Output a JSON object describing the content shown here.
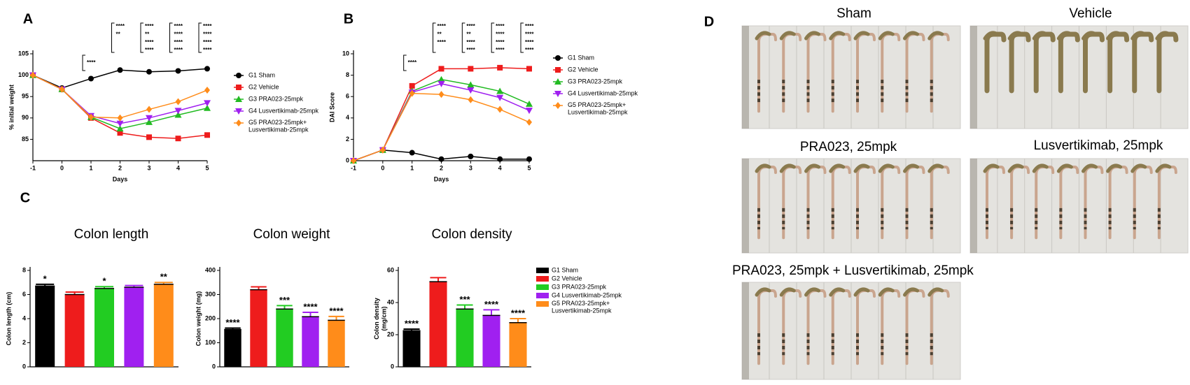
{
  "chart_data": [
    {
      "type": "line",
      "panel": "A",
      "xlabel": "Days",
      "ylabel": "% initial weight",
      "x": [
        -1,
        0,
        1,
        2,
        3,
        4,
        5
      ],
      "xlim": [
        -1,
        5
      ],
      "xticks": [
        -1,
        0,
        1,
        2,
        3,
        4,
        5
      ],
      "ylim": [
        80,
        105
      ],
      "yticks": [
        85,
        90,
        95,
        100,
        105
      ],
      "series": [
        {
          "name": "G1 Sham",
          "color": "#000000",
          "marker": "circle",
          "values": [
            100,
            97,
            99.2,
            101.2,
            100.8,
            101,
            101.5
          ]
        },
        {
          "name": "G2 Vehicle",
          "color": "#ee1c1c",
          "marker": "square",
          "values": [
            100,
            96.7,
            90,
            86.5,
            85.5,
            85.2,
            86
          ]
        },
        {
          "name": "G3 PRA023-25mpk",
          "color": "#22bb22",
          "marker": "triangle-up",
          "values": [
            100,
            96.7,
            90.2,
            87.5,
            89,
            90.7,
            92.3
          ]
        },
        {
          "name": "G4 Lusvertikimab-25mpk",
          "color": "#a020f0",
          "marker": "triangle-down",
          "values": [
            100,
            96.7,
            90.5,
            88.7,
            90,
            91.7,
            93.5
          ]
        },
        {
          "name": "G5 PRA023-25mpk+\nLusvertikimab-25mpk",
          "color": "#ff8c1a",
          "marker": "diamond",
          "values": [
            100,
            96.7,
            90.2,
            90,
            92,
            93.8,
            96.5
          ]
        }
      ],
      "annotations": [
        {
          "x": 1,
          "labels": [
            {
              "text": "****",
              "color": "#000000"
            }
          ]
        },
        {
          "x": 2,
          "labels": [
            {
              "text": "****",
              "color": "#000000"
            },
            {
              "text": "**",
              "color": "#ff8c1a"
            }
          ]
        },
        {
          "x": 3,
          "labels": [
            {
              "text": "****",
              "color": "#000000"
            },
            {
              "text": "**",
              "color": "#22bb22"
            },
            {
              "text": "****",
              "color": "#a020f0"
            },
            {
              "text": "****",
              "color": "#ff8c1a"
            }
          ]
        },
        {
          "x": 4,
          "labels": [
            {
              "text": "****",
              "color": "#000000"
            },
            {
              "text": "****",
              "color": "#22bb22"
            },
            {
              "text": "****",
              "color": "#a020f0"
            },
            {
              "text": "****",
              "color": "#ff8c1a"
            }
          ]
        },
        {
          "x": 5,
          "labels": [
            {
              "text": "****",
              "color": "#000000"
            },
            {
              "text": "****",
              "color": "#22bb22"
            },
            {
              "text": "****",
              "color": "#a020f0"
            },
            {
              "text": "****",
              "color": "#ff8c1a"
            }
          ]
        }
      ]
    },
    {
      "type": "line",
      "panel": "B",
      "xlabel": "Days",
      "ylabel": "DAI Score",
      "x": [
        -1,
        0,
        1,
        2,
        3,
        4,
        5
      ],
      "xlim": [
        -1,
        5
      ],
      "xticks": [
        -1,
        0,
        1,
        2,
        3,
        4,
        5
      ],
      "ylim": [
        0,
        10
      ],
      "yticks": [
        0,
        2,
        4,
        6,
        8,
        10
      ],
      "series": [
        {
          "name": "G1 Sham",
          "color": "#000000",
          "marker": "circle",
          "values": [
            0,
            1,
            0.75,
            0.15,
            0.4,
            0.15,
            0.15
          ]
        },
        {
          "name": "G2 Vehicle",
          "color": "#ee1c1c",
          "marker": "square",
          "values": [
            0,
            1,
            7,
            8.6,
            8.6,
            8.7,
            8.6
          ]
        },
        {
          "name": "G3 PRA023-25mpk",
          "color": "#22bb22",
          "marker": "triangle-up",
          "values": [
            0,
            1,
            6.5,
            7.6,
            7.1,
            6.5,
            5.3
          ]
        },
        {
          "name": "G4 Lusvertikimab-25mpk",
          "color": "#a020f0",
          "marker": "triangle-down",
          "values": [
            0,
            1,
            6.4,
            7.2,
            6.6,
            5.9,
            4.7
          ]
        },
        {
          "name": "G5 PRA023-25mpk+\nLusvertikimab-25mpk",
          "color": "#ff8c1a",
          "marker": "diamond",
          "values": [
            0,
            1,
            6.3,
            6.2,
            5.7,
            4.8,
            3.6
          ]
        }
      ],
      "annotations": [
        {
          "x": 1,
          "labels": [
            {
              "text": "****",
              "color": "#000000"
            }
          ]
        },
        {
          "x": 2,
          "labels": [
            {
              "text": "****",
              "color": "#000000"
            },
            {
              "text": "**",
              "color": "#a020f0"
            },
            {
              "text": "****",
              "color": "#ff8c1a"
            }
          ]
        },
        {
          "x": 3,
          "labels": [
            {
              "text": "****",
              "color": "#000000"
            },
            {
              "text": "**",
              "color": "#22bb22"
            },
            {
              "text": "****",
              "color": "#a020f0"
            },
            {
              "text": "****",
              "color": "#ff8c1a"
            }
          ]
        },
        {
          "x": 4,
          "labels": [
            {
              "text": "****",
              "color": "#000000"
            },
            {
              "text": "****",
              "color": "#22bb22"
            },
            {
              "text": "****",
              "color": "#a020f0"
            },
            {
              "text": "****",
              "color": "#ff8c1a"
            }
          ]
        },
        {
          "x": 5,
          "labels": [
            {
              "text": "****",
              "color": "#000000"
            },
            {
              "text": "****",
              "color": "#22bb22"
            },
            {
              "text": "****",
              "color": "#a020f0"
            },
            {
              "text": "****",
              "color": "#ff8c1a"
            }
          ]
        }
      ]
    },
    {
      "type": "bar",
      "panel": "C",
      "title": "Colon length",
      "ylabel": "Colon length (cm)",
      "ylim": [
        0,
        8
      ],
      "yticks": [
        0,
        2,
        4,
        6,
        8
      ],
      "values": [
        6.7,
        6.0,
        6.5,
        6.6,
        6.85
      ],
      "errors": [
        0.15,
        0.2,
        0.15,
        0.15,
        0.15
      ],
      "value_labels": [
        "*",
        null,
        "*",
        null,
        "**"
      ],
      "colors": [
        "#000000",
        "#ee1c1c",
        "#22cc22",
        "#a020f0",
        "#ff8c1a"
      ]
    },
    {
      "type": "bar",
      "title": "Colon weight",
      "ylabel": "Colon weight (mg)",
      "ylim": [
        0,
        400
      ],
      "yticks": [
        0,
        100,
        200,
        300,
        400
      ],
      "values": [
        155,
        320,
        240,
        208,
        193
      ],
      "errors": [
        6,
        12,
        14,
        18,
        16
      ],
      "value_labels": [
        "****",
        null,
        "***",
        "****",
        "****"
      ],
      "colors": [
        "#000000",
        "#ee1c1c",
        "#22cc22",
        "#a020f0",
        "#ff8c1a"
      ]
    },
    {
      "type": "bar",
      "title": "Colon density",
      "ylabel": "Colon density\n(mg/cm)",
      "ylim": [
        0,
        60
      ],
      "yticks": [
        0,
        20,
        40,
        60
      ],
      "values": [
        22.5,
        53,
        36,
        32,
        27.5
      ],
      "errors": [
        1,
        2.5,
        2.5,
        3.5,
        2.5
      ],
      "value_labels": [
        "****",
        null,
        "***",
        "****",
        "****"
      ],
      "colors": [
        "#000000",
        "#ee1c1c",
        "#22cc22",
        "#a020f0",
        "#ff8c1a"
      ],
      "legend": [
        "G1 Sham",
        "G2 Vehicle",
        "G3 PRA023-25mpk",
        "G4 Lusvertikimab-25mpk",
        "G5 PRA023-25mpk+\nLusvertikimab-25mpk"
      ]
    }
  ],
  "photos": {
    "panel": "D",
    "captions": [
      "Sham",
      "Vehicle",
      "PRA023, 25mpk",
      "Lusvertikimab, 25mpk",
      "PRA023, 25mpk + Lusvertikimab, 25mpk"
    ]
  }
}
